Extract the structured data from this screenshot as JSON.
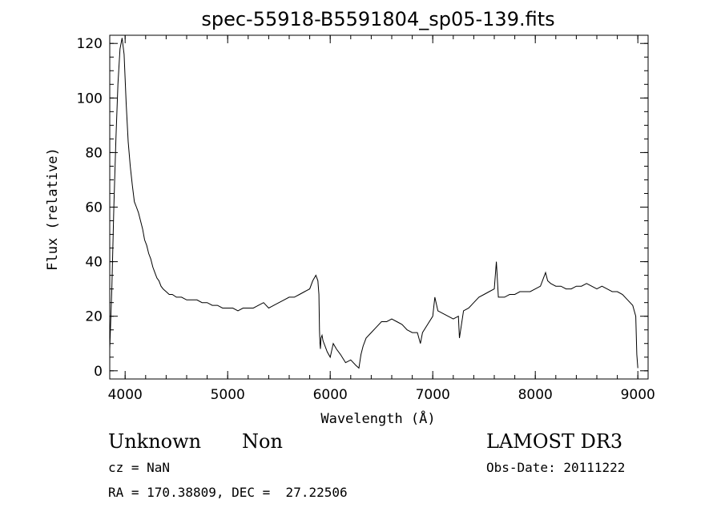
{
  "chart_data": {
    "type": "line",
    "title": "spec-55918-B5591804_sp05-139.fits",
    "xlabel": "Wavelength (Å)",
    "ylabel": "Flux (relative)",
    "xlim": [
      3850,
      9100
    ],
    "ylim": [
      -3,
      123
    ],
    "x_ticks": [
      4000,
      5000,
      6000,
      7000,
      8000,
      9000
    ],
    "y_ticks": [
      0,
      20,
      40,
      60,
      80,
      100,
      120
    ],
    "x_minor_step": 200,
    "y_minor_step": 5,
    "grid": false,
    "series": [
      {
        "x": [
          3850,
          3870,
          3890,
          3910,
          3930,
          3950,
          3970,
          3990,
          4010,
          4030,
          4050,
          4070,
          4090,
          4110,
          4130,
          4150,
          4170,
          4190,
          4210,
          4230,
          4250,
          4270,
          4290,
          4310,
          4330,
          4350,
          4370,
          4400,
          4430,
          4460,
          4500,
          4550,
          4600,
          4650,
          4700,
          4750,
          4800,
          4850,
          4900,
          4950,
          5000,
          5050,
          5100,
          5150,
          5200,
          5250,
          5300,
          5350,
          5400,
          5450,
          5500,
          5550,
          5600,
          5650,
          5700,
          5750,
          5800,
          5830,
          5860,
          5880,
          5890,
          5895,
          5900,
          5905,
          5910,
          5920,
          5930,
          5950,
          5970,
          6000,
          6030,
          6060,
          6100,
          6150,
          6200,
          6250,
          6280,
          6300,
          6320,
          6350,
          6400,
          6450,
          6500,
          6550,
          6600,
          6650,
          6700,
          6750,
          6800,
          6850,
          6880,
          6900,
          6950,
          7000,
          7020,
          7050,
          7100,
          7150,
          7200,
          7250,
          7260,
          7300,
          7350,
          7400,
          7450,
          7500,
          7550,
          7600,
          7620,
          7640,
          7700,
          7750,
          7800,
          7850,
          7900,
          7950,
          8000,
          8050,
          8100,
          8120,
          8150,
          8200,
          8250,
          8300,
          8350,
          8400,
          8450,
          8500,
          8550,
          8600,
          8650,
          8700,
          8750,
          8800,
          8850,
          8900,
          8950,
          8980,
          8990,
          9000
        ],
        "y": [
          8,
          30,
          60,
          85,
          105,
          118,
          122,
          116,
          98,
          84,
          75,
          68,
          62,
          60,
          58,
          55,
          52,
          48,
          46,
          43,
          41,
          38,
          36,
          34,
          33,
          31,
          30,
          29,
          28,
          28,
          27,
          27,
          26,
          26,
          26,
          25,
          25,
          24,
          24,
          23,
          23,
          23,
          22,
          23,
          23,
          23,
          24,
          25,
          23,
          24,
          25,
          26,
          27,
          27,
          28,
          29,
          30,
          33,
          35,
          33,
          28,
          15,
          10,
          8,
          12,
          13,
          11,
          9,
          7,
          5,
          10,
          8,
          6,
          3,
          4,
          2,
          1,
          6,
          9,
          12,
          14,
          16,
          18,
          18,
          19,
          18,
          17,
          15,
          14,
          14,
          10,
          14,
          17,
          20,
          27,
          22,
          21,
          20,
          19,
          20,
          12,
          22,
          23,
          25,
          27,
          28,
          29,
          30,
          40,
          27,
          27,
          28,
          28,
          29,
          29,
          29,
          30,
          31,
          36,
          33,
          32,
          31,
          31,
          30,
          30,
          31,
          31,
          32,
          31,
          30,
          31,
          30,
          29,
          29,
          28,
          26,
          24,
          20,
          6,
          1
        ]
      }
    ]
  },
  "footer": {
    "classification": "Unknown",
    "subclass": "Non",
    "survey": "LAMOST DR3",
    "cz": "cz = NaN",
    "obs_date": "Obs-Date: 20111222",
    "coords": "RA = 170.38809, DEC =  27.22506"
  }
}
